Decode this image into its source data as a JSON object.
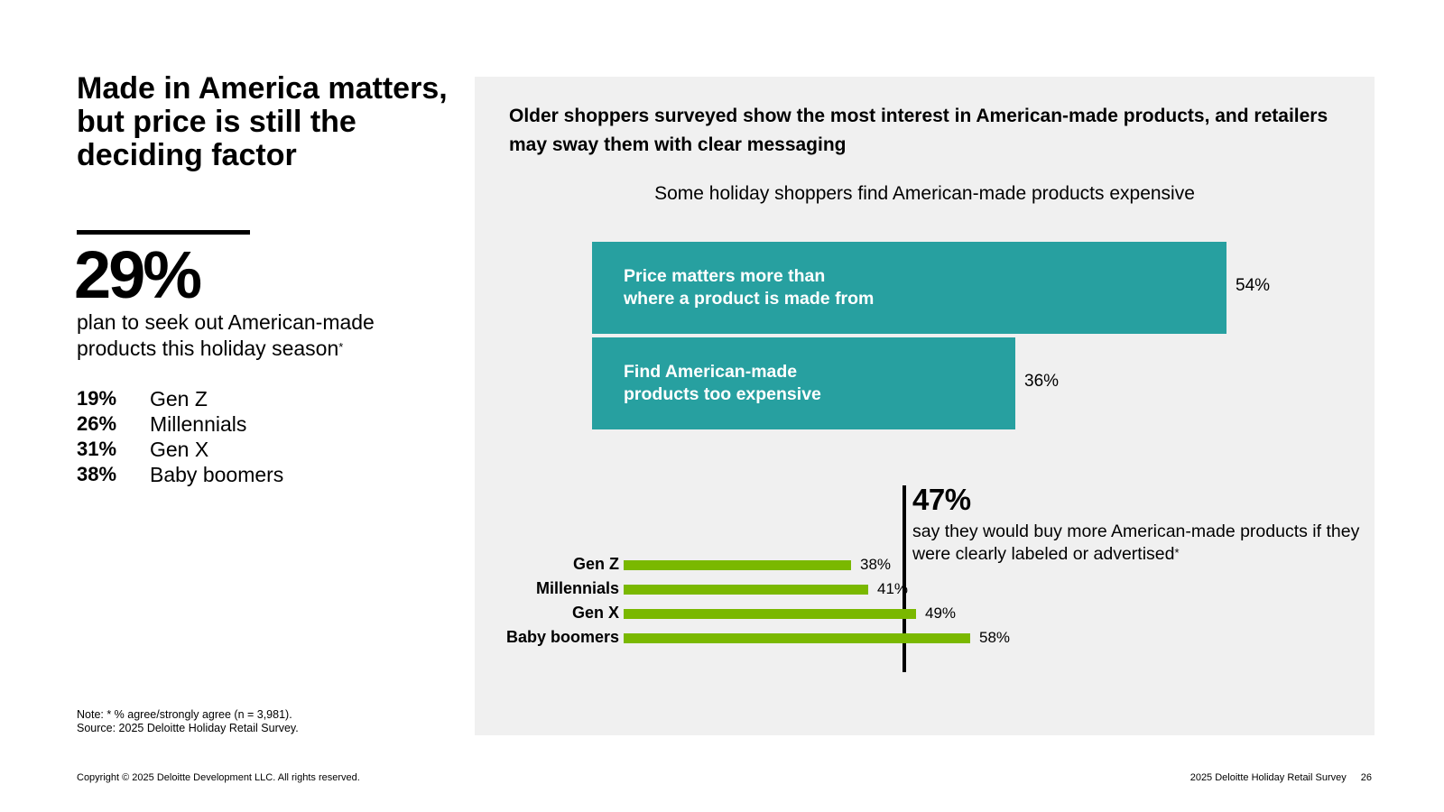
{
  "title": "Made in America matters, but price is still the deciding factor",
  "headline_stat": {
    "value": "29%",
    "description": "plan to seek out American-made products this holiday season",
    "footnote_marker": "*"
  },
  "generations": [
    {
      "value": "19%",
      "label": "Gen Z"
    },
    {
      "value": "26%",
      "label": "Millennials"
    },
    {
      "value": "31%",
      "label": "Gen X"
    },
    {
      "value": "38%",
      "label": "Baby boomers"
    }
  ],
  "note": {
    "line1": "Note: * % agree/strongly agree (n = 3,981).",
    "line2": "Source: 2025 Deloitte Holiday Retail Survey."
  },
  "footer": {
    "copyright": "Copyright © 2025 Deloitte Development LLC. All rights reserved.",
    "survey": "2025 Deloitte Holiday Retail Survey",
    "page": "26"
  },
  "panel": {
    "title": "Older shoppers surveyed show the most interest in American-made products, and retailers may sway them with clear messaging"
  },
  "callout": {
    "value": "47%",
    "text": "say they would buy more American-made products if they were clearly labeled or advertised",
    "footnote_marker": "*"
  },
  "colors": {
    "teal": "#27a0a0",
    "green": "#7ab800",
    "panel_bg": "#f0f0f0"
  },
  "chart_data": [
    {
      "type": "bar",
      "orientation": "horizontal",
      "title": "Some holiday shoppers find American-made products expensive",
      "categories": [
        "Price matters more than where a product is made from",
        "Find American-made products too expensive"
      ],
      "category_lines": [
        [
          "Price matters more than",
          "where a product is made from"
        ],
        [
          "Find American-made",
          "products too expensive"
        ]
      ],
      "values": [
        54,
        36
      ],
      "labels": [
        "54%",
        "36%"
      ],
      "xlim": [
        0,
        54
      ]
    },
    {
      "type": "bar",
      "orientation": "horizontal",
      "title": "",
      "categories": [
        "Gen Z",
        "Millennials",
        "Gen X",
        "Baby boomers"
      ],
      "values": [
        38,
        41,
        49,
        58
      ],
      "labels": [
        "38%",
        "41%",
        "49%",
        "58%"
      ],
      "reference_value": 47,
      "xlim": [
        0,
        58
      ]
    }
  ]
}
